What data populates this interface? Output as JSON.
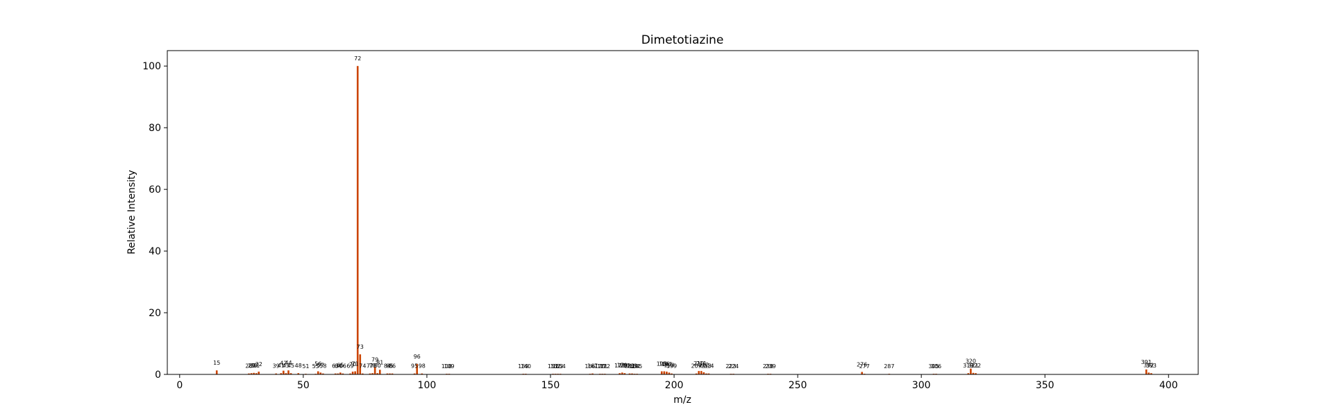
{
  "chart_data": {
    "type": "bar",
    "title": "Dimetotiazine",
    "xlabel": "m/z",
    "ylabel": "Relative Intensity",
    "xlim": [
      -5,
      412
    ],
    "ylim": [
      0,
      105
    ],
    "xticks": [
      0,
      50,
      100,
      150,
      200,
      250,
      300,
      350,
      400
    ],
    "yticks": [
      0,
      20,
      40,
      60,
      80,
      100
    ],
    "bar_color": "#cc4400",
    "grid": false,
    "peaks": [
      {
        "mz": 15,
        "intensity": 1.3,
        "label": "15"
      },
      {
        "mz": 28,
        "intensity": 0.3,
        "label": "28"
      },
      {
        "mz": 29,
        "intensity": 0.4,
        "label": "29"
      },
      {
        "mz": 30,
        "intensity": 0.5,
        "label": "30"
      },
      {
        "mz": 31,
        "intensity": 0.4,
        "label": "31"
      },
      {
        "mz": 32,
        "intensity": 0.9,
        "label": "32"
      },
      {
        "mz": 39,
        "intensity": 0.3,
        "label": "39"
      },
      {
        "mz": 41,
        "intensity": 0.4,
        "label": "41"
      },
      {
        "mz": 42,
        "intensity": 1.2,
        "label": "42"
      },
      {
        "mz": 43,
        "intensity": 0.4,
        "label": "43"
      },
      {
        "mz": 44,
        "intensity": 1.3,
        "label": "44"
      },
      {
        "mz": 45,
        "intensity": 0.4,
        "label": "45"
      },
      {
        "mz": 48,
        "intensity": 0.4,
        "label": "48"
      },
      {
        "mz": 51,
        "intensity": 0.2,
        "label": "51"
      },
      {
        "mz": 55,
        "intensity": 0.2,
        "label": "55"
      },
      {
        "mz": 56,
        "intensity": 1.0,
        "label": "56"
      },
      {
        "mz": 57,
        "intensity": 0.6,
        "label": "57"
      },
      {
        "mz": 58,
        "intensity": 0.3,
        "label": "58"
      },
      {
        "mz": 63,
        "intensity": 0.3,
        "label": "63"
      },
      {
        "mz": 64,
        "intensity": 0.3,
        "label": "64"
      },
      {
        "mz": 65,
        "intensity": 0.6,
        "label": "65"
      },
      {
        "mz": 66,
        "intensity": 0.3,
        "label": "66"
      },
      {
        "mz": 69,
        "intensity": 0.3,
        "label": "69"
      },
      {
        "mz": 70,
        "intensity": 0.9,
        "label": "70"
      },
      {
        "mz": 71,
        "intensity": 1.0,
        "label": "71"
      },
      {
        "mz": 72,
        "intensity": 100.0,
        "label": "72"
      },
      {
        "mz": 73,
        "intensity": 6.5,
        "label": "73"
      },
      {
        "mz": 74,
        "intensity": 0.3,
        "label": "74"
      },
      {
        "mz": 77,
        "intensity": 0.3,
        "label": "77"
      },
      {
        "mz": 78,
        "intensity": 0.4,
        "label": "78"
      },
      {
        "mz": 79,
        "intensity": 2.4,
        "label": "79"
      },
      {
        "mz": 80,
        "intensity": 0.4,
        "label": "80"
      },
      {
        "mz": 81,
        "intensity": 1.5,
        "label": "81"
      },
      {
        "mz": 84,
        "intensity": 0.3,
        "label": "84"
      },
      {
        "mz": 85,
        "intensity": 0.3,
        "label": "85"
      },
      {
        "mz": 86,
        "intensity": 0.3,
        "label": "86"
      },
      {
        "mz": 95,
        "intensity": 0.3,
        "label": "95"
      },
      {
        "mz": 96,
        "intensity": 3.4,
        "label": "96"
      },
      {
        "mz": 98,
        "intensity": 0.3,
        "label": "98"
      },
      {
        "mz": 108,
        "intensity": 0.2,
        "label": "108"
      },
      {
        "mz": 109,
        "intensity": 0.2,
        "label": "109"
      },
      {
        "mz": 139,
        "intensity": 0.2,
        "label": "139"
      },
      {
        "mz": 140,
        "intensity": 0.2,
        "label": "140"
      },
      {
        "mz": 151,
        "intensity": 0.2,
        "label": "151"
      },
      {
        "mz": 152,
        "intensity": 0.2,
        "label": "152"
      },
      {
        "mz": 153,
        "intensity": 0.2,
        "label": "153"
      },
      {
        "mz": 154,
        "intensity": 0.2,
        "label": "154"
      },
      {
        "mz": 166,
        "intensity": 0.2,
        "label": "166"
      },
      {
        "mz": 167,
        "intensity": 0.3,
        "label": "167"
      },
      {
        "mz": 170,
        "intensity": 0.2,
        "label": "170"
      },
      {
        "mz": 171,
        "intensity": 0.2,
        "label": "171"
      },
      {
        "mz": 172,
        "intensity": 0.2,
        "label": "172"
      },
      {
        "mz": 178,
        "intensity": 0.4,
        "label": "178"
      },
      {
        "mz": 179,
        "intensity": 0.6,
        "label": "179"
      },
      {
        "mz": 180,
        "intensity": 0.4,
        "label": "180"
      },
      {
        "mz": 182,
        "intensity": 0.3,
        "label": "182"
      },
      {
        "mz": 183,
        "intensity": 0.3,
        "label": "183"
      },
      {
        "mz": 184,
        "intensity": 0.2,
        "label": "184"
      },
      {
        "mz": 185,
        "intensity": 0.2,
        "label": "185"
      },
      {
        "mz": 195,
        "intensity": 1.0,
        "label": "195"
      },
      {
        "mz": 196,
        "intensity": 1.0,
        "label": "196"
      },
      {
        "mz": 197,
        "intensity": 0.9,
        "label": "197"
      },
      {
        "mz": 198,
        "intensity": 0.6,
        "label": "198"
      },
      {
        "mz": 199,
        "intensity": 0.3,
        "label": "199"
      },
      {
        "mz": 209,
        "intensity": 0.3,
        "label": "209"
      },
      {
        "mz": 210,
        "intensity": 1.1,
        "label": "210"
      },
      {
        "mz": 211,
        "intensity": 1.1,
        "label": "211"
      },
      {
        "mz": 212,
        "intensity": 0.7,
        "label": "212"
      },
      {
        "mz": 213,
        "intensity": 0.3,
        "label": "213"
      },
      {
        "mz": 214,
        "intensity": 0.3,
        "label": "214"
      },
      {
        "mz": 223,
        "intensity": 0.2,
        "label": "223"
      },
      {
        "mz": 224,
        "intensity": 0.2,
        "label": "224"
      },
      {
        "mz": 238,
        "intensity": 0.2,
        "label": "238"
      },
      {
        "mz": 239,
        "intensity": 0.2,
        "label": "239"
      },
      {
        "mz": 276,
        "intensity": 0.8,
        "label": "276"
      },
      {
        "mz": 277,
        "intensity": 0.2,
        "label": "277"
      },
      {
        "mz": 287,
        "intensity": 0.2,
        "label": "287"
      },
      {
        "mz": 305,
        "intensity": 0.2,
        "label": "305"
      },
      {
        "mz": 306,
        "intensity": 0.2,
        "label": "306"
      },
      {
        "mz": 319,
        "intensity": 0.4,
        "label": "319"
      },
      {
        "mz": 320,
        "intensity": 1.9,
        "label": "320"
      },
      {
        "mz": 321,
        "intensity": 0.5,
        "label": "321"
      },
      {
        "mz": 322,
        "intensity": 0.4,
        "label": "322"
      },
      {
        "mz": 391,
        "intensity": 1.6,
        "label": "391"
      },
      {
        "mz": 392,
        "intensity": 0.6,
        "label": "392"
      },
      {
        "mz": 393,
        "intensity": 0.4,
        "label": "393"
      }
    ]
  }
}
